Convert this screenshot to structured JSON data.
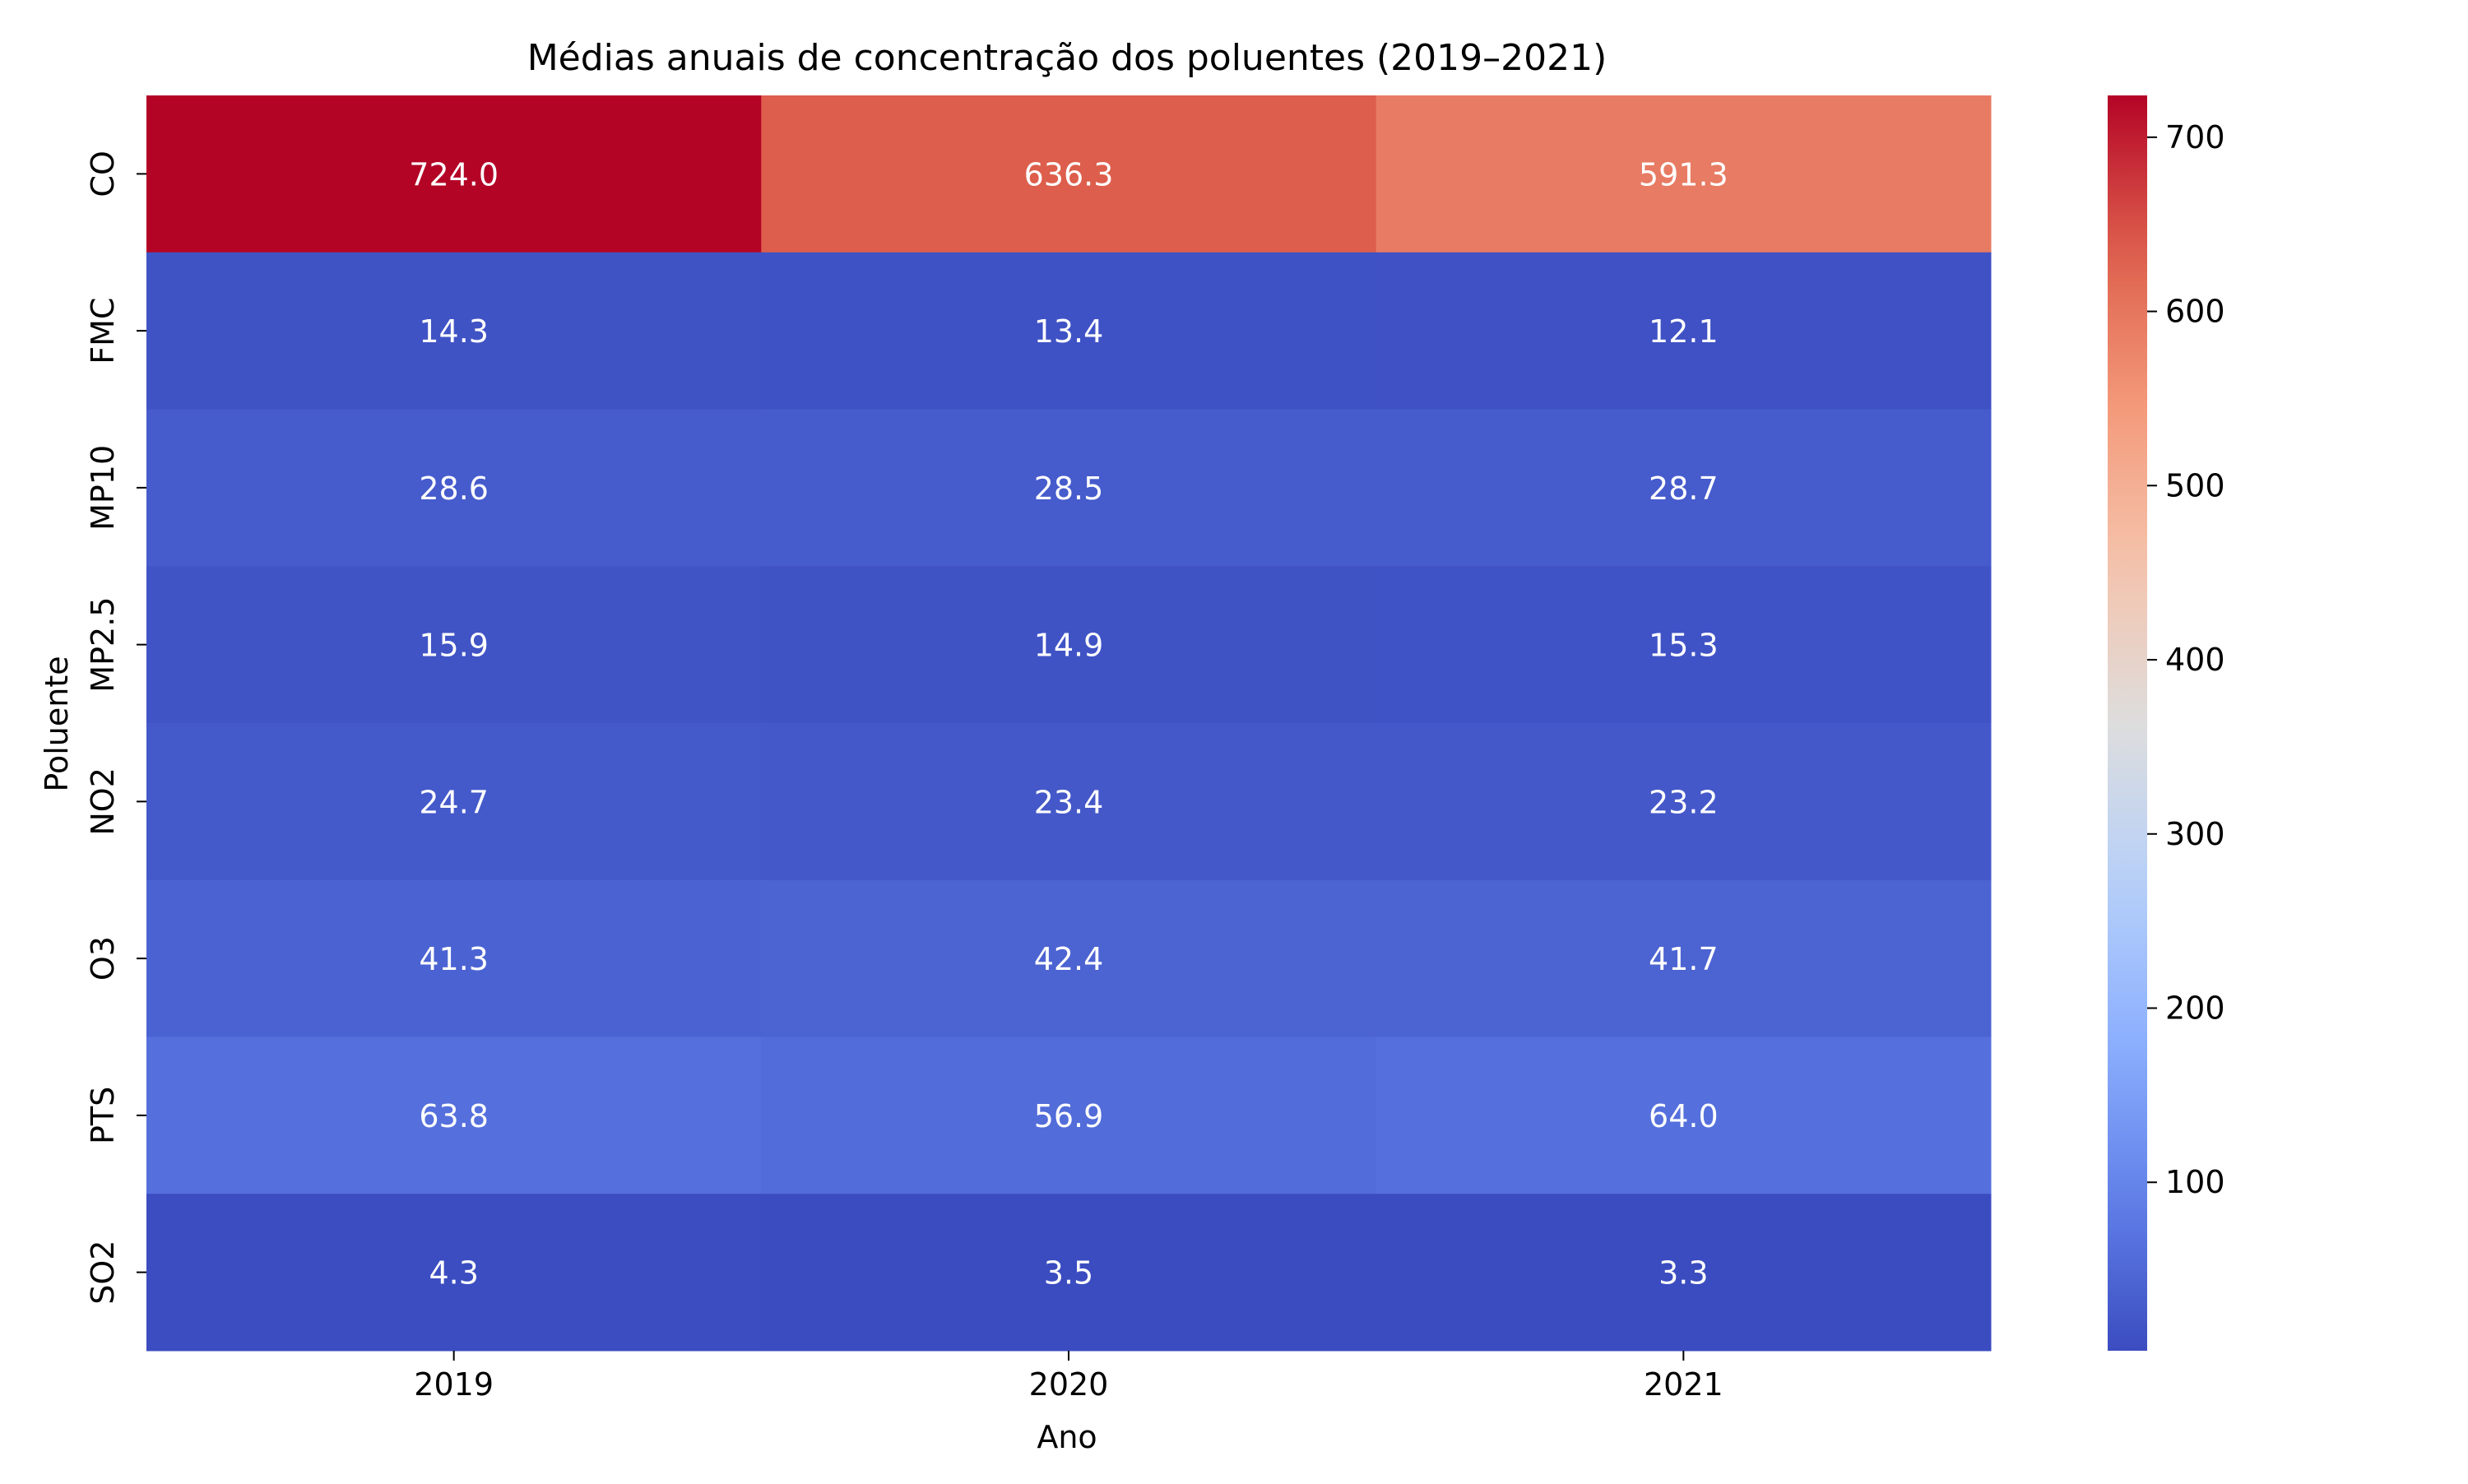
{
  "chart_data": {
    "type": "heatmap",
    "title": "Médias anuais de concentração dos poluentes (2019–2021)",
    "xlabel": "Ano",
    "ylabel": "Poluente",
    "x_categories": [
      "2019",
      "2020",
      "2021"
    ],
    "y_categories": [
      "CO",
      "FMC",
      "MP10",
      "MP2.5",
      "NO2",
      "O3",
      "PTS",
      "SO2"
    ],
    "values": [
      [
        724.0,
        636.3,
        591.3
      ],
      [
        14.3,
        13.4,
        12.1
      ],
      [
        28.6,
        28.5,
        28.7
      ],
      [
        15.9,
        14.9,
        15.3
      ],
      [
        24.7,
        23.4,
        23.2
      ],
      [
        41.3,
        42.4,
        41.7
      ],
      [
        63.8,
        56.9,
        64.0
      ],
      [
        4.3,
        3.5,
        3.3
      ]
    ],
    "value_format": "one decimal",
    "colormap": "coolwarm",
    "colorbar": {
      "min": 3.3,
      "max": 724.0,
      "ticks": [
        "100",
        "200",
        "300",
        "400",
        "500",
        "600",
        "700"
      ],
      "position": "right"
    },
    "grid": false,
    "legend": "none"
  }
}
